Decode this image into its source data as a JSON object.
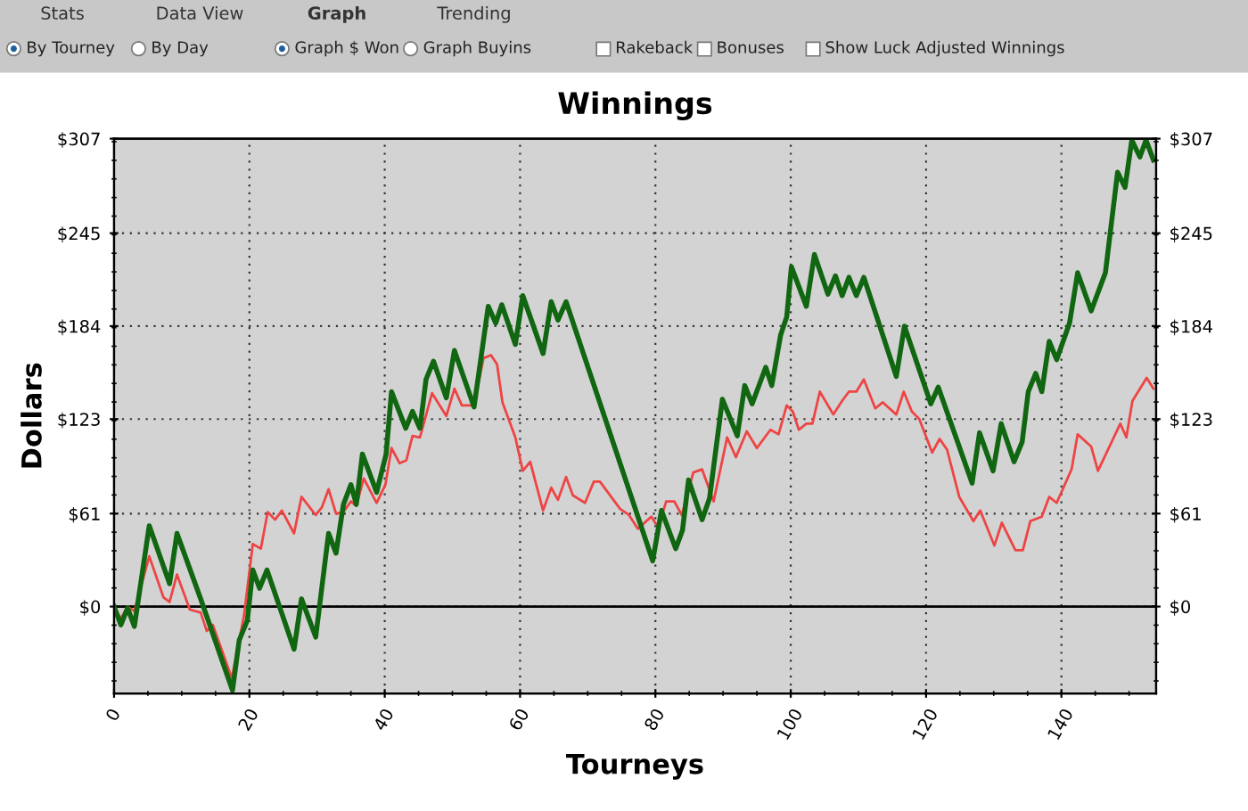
{
  "chart_data": {
    "type": "line",
    "title": "Winnings",
    "xlabel": "Tourneys",
    "ylabel": "Dollars",
    "annotations": [
      "Stats",
      "Data View",
      "Graph",
      "Trending",
      "By Tourney",
      "By Day",
      "Graph $ Won",
      "Graph Buyins",
      "Rakeback",
      "Bonuses",
      "Show Luck Adjusted Winnings"
    ],
    "xlim": [
      0,
      154
    ],
    "xticks": [
      0,
      20,
      40,
      60,
      80,
      100,
      120,
      140
    ],
    "ylim": [
      -57,
      307
    ],
    "yticks": [
      {
        "value": 0,
        "label": "$0"
      },
      {
        "value": 61,
        "label": "$61"
      },
      {
        "value": 123,
        "label": "$123"
      },
      {
        "value": 184,
        "label": "$184"
      },
      {
        "value": 245,
        "label": "$245"
      },
      {
        "value": 307,
        "label": "$307"
      }
    ],
    "y2lim": [
      -57,
      307
    ],
    "y2ticks": [
      {
        "value": 0,
        "label": "$0"
      },
      {
        "value": 61,
        "label": "$61"
      },
      {
        "value": 123,
        "label": "$123"
      },
      {
        "value": 184,
        "label": "$184"
      },
      {
        "value": 245,
        "label": "$245"
      },
      {
        "value": 307,
        "label": "$307"
      }
    ],
    "grid": true,
    "legend": false,
    "marker": "none",
    "line_style": "solid",
    "ref_lines": [
      {
        "axis": "y",
        "value": 0,
        "color": "#000000"
      }
    ],
    "series": [
      {
        "color": "#116611",
        "x": [
          0,
          1,
          2,
          3,
          5.2,
          8.2,
          9.3,
          12.8,
          17.5,
          18.5,
          19.7,
          20.5,
          21.5,
          22.6,
          26.6,
          27.7,
          29.8,
          31.7,
          32.8,
          33.9,
          35,
          35.8,
          36.7,
          38.8,
          40.2,
          41,
          43.1,
          44.1,
          45.2,
          46.1,
          47.2,
          49.1,
          50.3,
          53.2,
          55.3,
          56.4,
          57.3,
          59.3,
          60.4,
          63.4,
          64.6,
          65.6,
          66.8,
          79.6,
          80.9,
          83,
          84,
          84.9,
          86.9,
          88,
          89.9,
          92.1,
          93.2,
          94.3,
          96.3,
          97.2,
          98.5,
          99.4,
          100.1,
          102.3,
          103.5,
          105.5,
          106.6,
          107.6,
          108.6,
          109.7,
          110.8,
          115.6,
          116.8,
          120.7,
          121.8,
          126.8,
          127.9,
          129.9,
          131.1,
          133,
          134.2,
          135.1,
          136.2,
          137.1,
          138.2,
          139.3,
          141.2,
          142.4,
          144.4,
          146.5,
          148.3,
          149.4,
          150.4,
          151.6,
          152.5,
          153.6
        ],
        "values": [
          0,
          -12,
          -1,
          -13,
          53,
          15,
          48,
          5,
          -55,
          -22,
          -9,
          24,
          12,
          24,
          -28,
          5,
          -20,
          48,
          35,
          67,
          80,
          67,
          100,
          75,
          100,
          141,
          117,
          128,
          117,
          149,
          161,
          137,
          168,
          131,
          197,
          186,
          198,
          172,
          204,
          166,
          200,
          188,
          200,
          30,
          63,
          38,
          50,
          83,
          57,
          71,
          136,
          112,
          145,
          133,
          157,
          145,
          178,
          190,
          223,
          197,
          231,
          205,
          217,
          204,
          216,
          204,
          216,
          151,
          184,
          133,
          144,
          81,
          114,
          89,
          120,
          95,
          108,
          141,
          153,
          141,
          174,
          162,
          186,
          219,
          194,
          219,
          285,
          275,
          306,
          295,
          306,
          293
        ]
      },
      {
        "color": "#ee4444",
        "x": [
          0,
          1,
          2,
          3,
          5.2,
          7.3,
          8.2,
          9.3,
          11.2,
          12.8,
          13.7,
          14.6,
          17.4,
          19.2,
          20.5,
          21.7,
          22.7,
          23.8,
          24.8,
          26.6,
          27.7,
          29.8,
          30.7,
          31.7,
          32.8,
          33.9,
          35,
          35.8,
          36.9,
          38.8,
          40.1,
          41,
          42.2,
          43.2,
          44.1,
          45.2,
          47,
          49.1,
          50.3,
          51.4,
          53.2,
          54.6,
          55.7,
          56.6,
          57.4,
          59.3,
          60.4,
          61.5,
          63.4,
          64.6,
          65.6,
          66.8,
          67.8,
          69.6,
          70.9,
          71.8,
          74.8,
          76.1,
          77.4,
          79.4,
          80.4,
          81.6,
          82.8,
          83.9,
          85.6,
          86.9,
          88.6,
          90.6,
          91.9,
          93.5,
          95,
          97,
          98.2,
          99.4,
          100.3,
          101.2,
          102.3,
          103.2,
          104.3,
          106.3,
          107.6,
          108.6,
          109.7,
          110.8,
          112.5,
          113.6,
          115.6,
          116.7,
          117.9,
          119,
          120.9,
          122,
          123.1,
          124.9,
          127,
          128,
          130.1,
          131.2,
          133.2,
          134.3,
          135.4,
          137.1,
          138.2,
          139.3,
          141.5,
          142.4,
          144.4,
          145.4,
          148.7,
          149.6,
          150.5,
          152.6,
          153.6
        ],
        "values": [
          0,
          -8,
          0,
          -3,
          33,
          6,
          3,
          21,
          -2,
          -4,
          -16,
          -12,
          -47,
          -6,
          41,
          38,
          62,
          57,
          63,
          48,
          72,
          60,
          65,
          77,
          61,
          62,
          69,
          66,
          84,
          68,
          80,
          104,
          94,
          96,
          112,
          111,
          140,
          125,
          143,
          132,
          132,
          163,
          165,
          159,
          134,
          111,
          89,
          95,
          63,
          78,
          70,
          85,
          73,
          68,
          82,
          82,
          64,
          60,
          51,
          59,
          52,
          69,
          69,
          60,
          88,
          90,
          69,
          111,
          98,
          115,
          104,
          116,
          113,
          132,
          128,
          116,
          120,
          120,
          141,
          126,
          135,
          141,
          141,
          149,
          130,
          134,
          126,
          141,
          128,
          123,
          101,
          110,
          103,
          72,
          56,
          63,
          40,
          55,
          37,
          37,
          56,
          59,
          72,
          68,
          90,
          113,
          105,
          89,
          120,
          111,
          135,
          150,
          143
        ]
      }
    ]
  }
}
